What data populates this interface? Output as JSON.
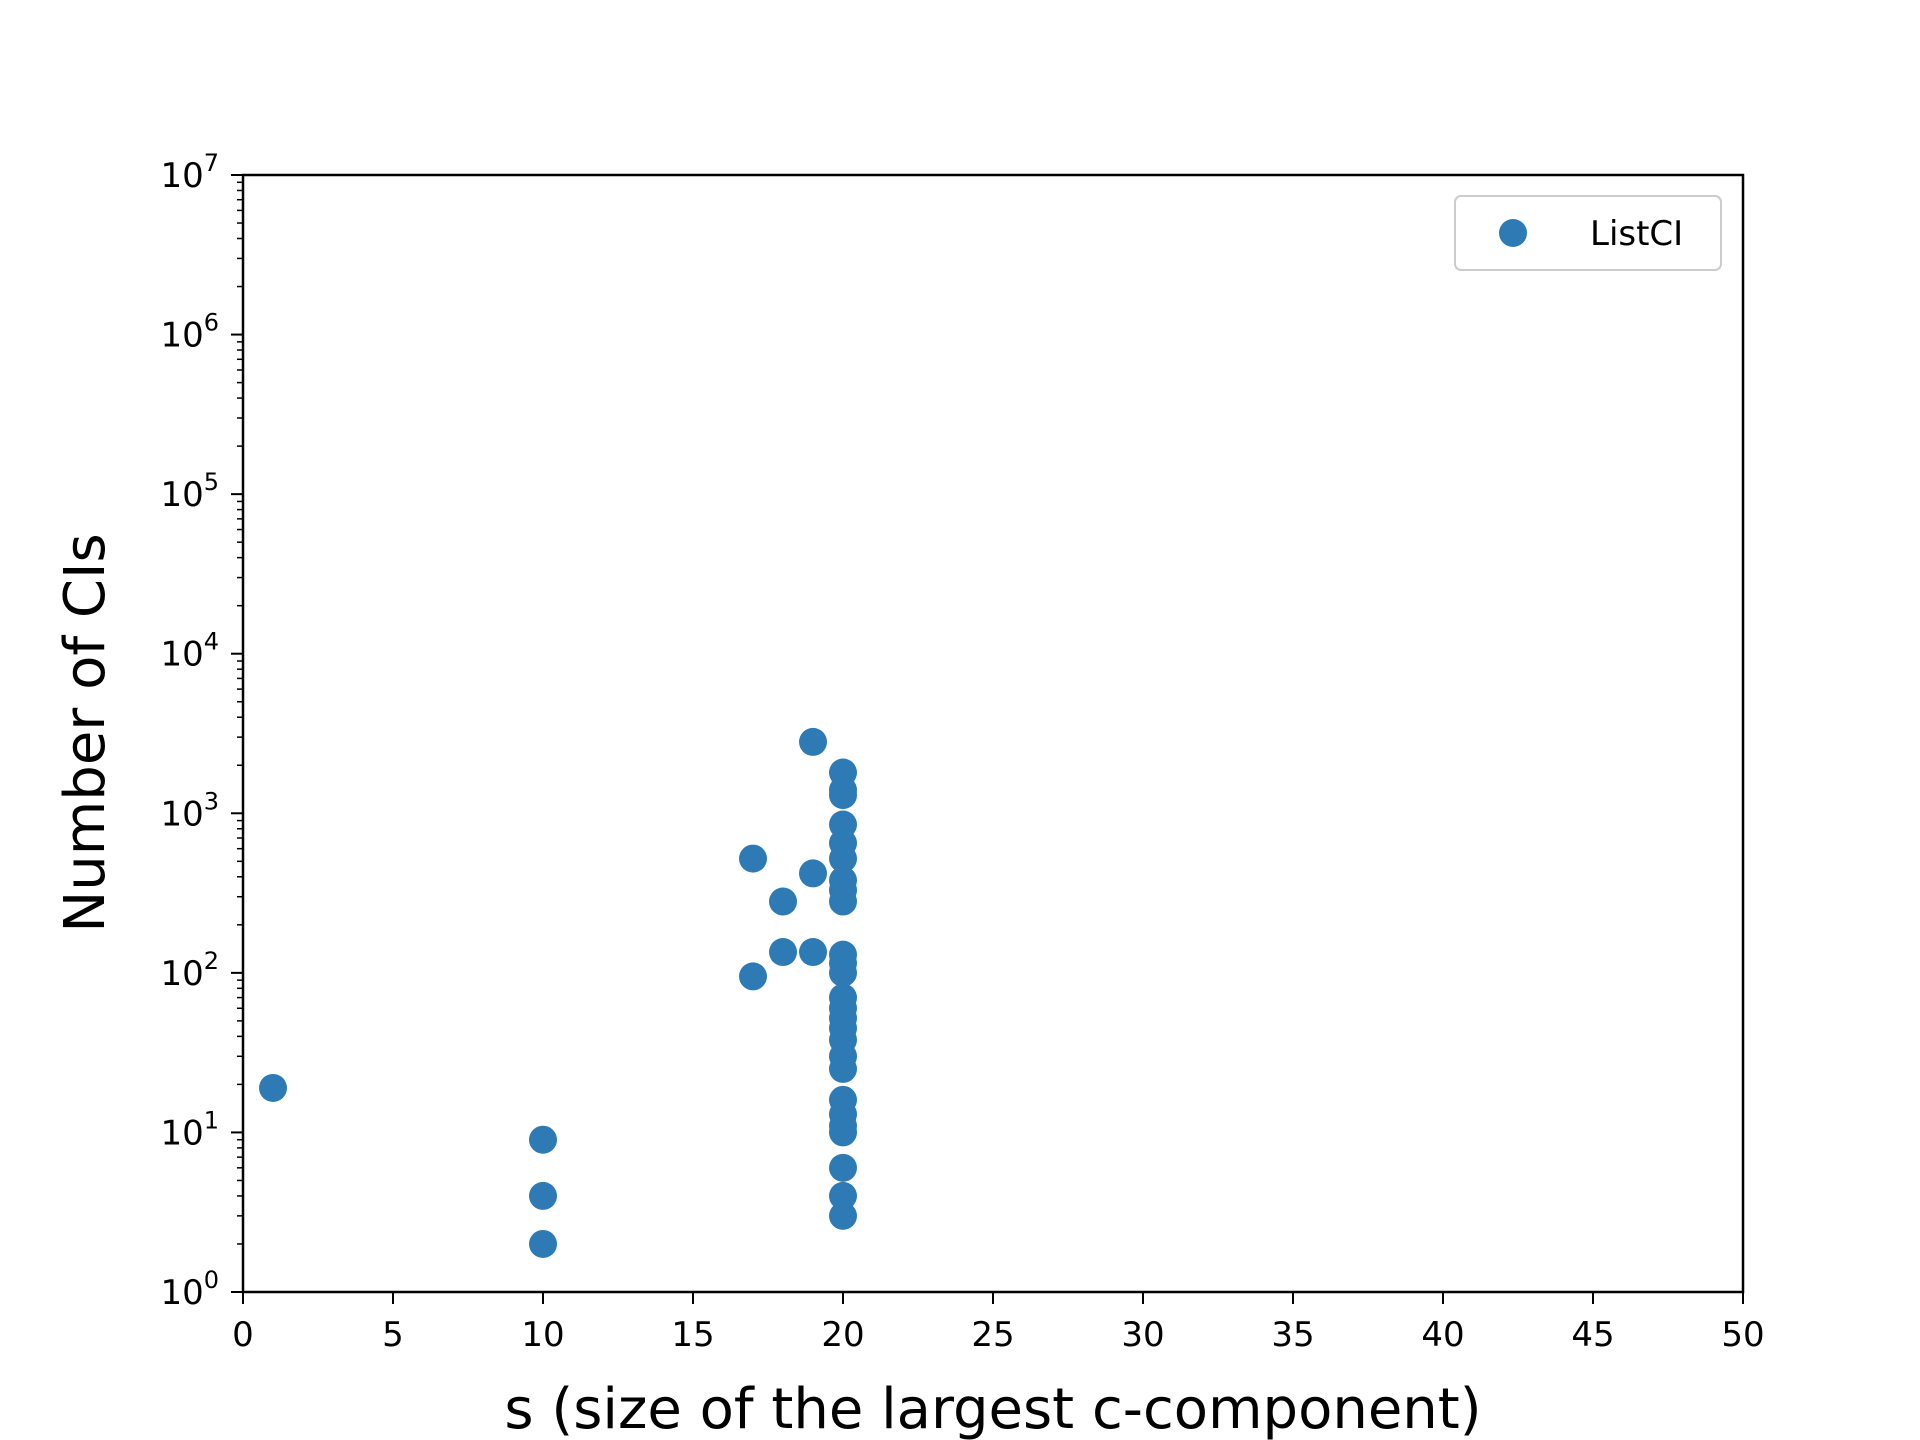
{
  "chart_data": {
    "type": "scatter",
    "title": "",
    "xlabel": "s (size of the largest c-component)",
    "ylabel": "Number of CIs",
    "xlim": [
      0,
      50
    ],
    "ylim": [
      1,
      10000000
    ],
    "yscale": "log",
    "grid": false,
    "legend_position": "top-right",
    "x_ticks": [
      0,
      5,
      10,
      15,
      20,
      25,
      30,
      35,
      40,
      45,
      50
    ],
    "y_ticks": [
      {
        "value": 1,
        "base": "10",
        "exp": "0"
      },
      {
        "value": 10,
        "base": "10",
        "exp": "1"
      },
      {
        "value": 100,
        "base": "10",
        "exp": "2"
      },
      {
        "value": 1000,
        "base": "10",
        "exp": "3"
      },
      {
        "value": 10000,
        "base": "10",
        "exp": "4"
      },
      {
        "value": 100000,
        "base": "10",
        "exp": "5"
      },
      {
        "value": 1000000,
        "base": "10",
        "exp": "6"
      },
      {
        "value": 10000000,
        "base": "10",
        "exp": "7"
      }
    ],
    "series": [
      {
        "name": "ListCI",
        "color": "#2e7ab5",
        "points": [
          {
            "x": 1,
            "y": 19
          },
          {
            "x": 10,
            "y": 9
          },
          {
            "x": 10,
            "y": 4
          },
          {
            "x": 10,
            "y": 2
          },
          {
            "x": 17,
            "y": 520
          },
          {
            "x": 17,
            "y": 95
          },
          {
            "x": 18,
            "y": 280
          },
          {
            "x": 18,
            "y": 135
          },
          {
            "x": 19,
            "y": 2800
          },
          {
            "x": 19,
            "y": 420
          },
          {
            "x": 19,
            "y": 135
          },
          {
            "x": 20,
            "y": 1800
          },
          {
            "x": 20,
            "y": 1400
          },
          {
            "x": 20,
            "y": 1300
          },
          {
            "x": 20,
            "y": 850
          },
          {
            "x": 20,
            "y": 650
          },
          {
            "x": 20,
            "y": 520
          },
          {
            "x": 20,
            "y": 380
          },
          {
            "x": 20,
            "y": 330
          },
          {
            "x": 20,
            "y": 280
          },
          {
            "x": 20,
            "y": 130
          },
          {
            "x": 20,
            "y": 115
          },
          {
            "x": 20,
            "y": 100
          },
          {
            "x": 20,
            "y": 70
          },
          {
            "x": 20,
            "y": 60
          },
          {
            "x": 20,
            "y": 52
          },
          {
            "x": 20,
            "y": 45
          },
          {
            "x": 20,
            "y": 38
          },
          {
            "x": 20,
            "y": 30
          },
          {
            "x": 20,
            "y": 25
          },
          {
            "x": 20,
            "y": 16
          },
          {
            "x": 20,
            "y": 13
          },
          {
            "x": 20,
            "y": 11
          },
          {
            "x": 20,
            "y": 10
          },
          {
            "x": 20,
            "y": 6
          },
          {
            "x": 20,
            "y": 4
          },
          {
            "x": 20,
            "y": 3
          }
        ]
      }
    ]
  }
}
